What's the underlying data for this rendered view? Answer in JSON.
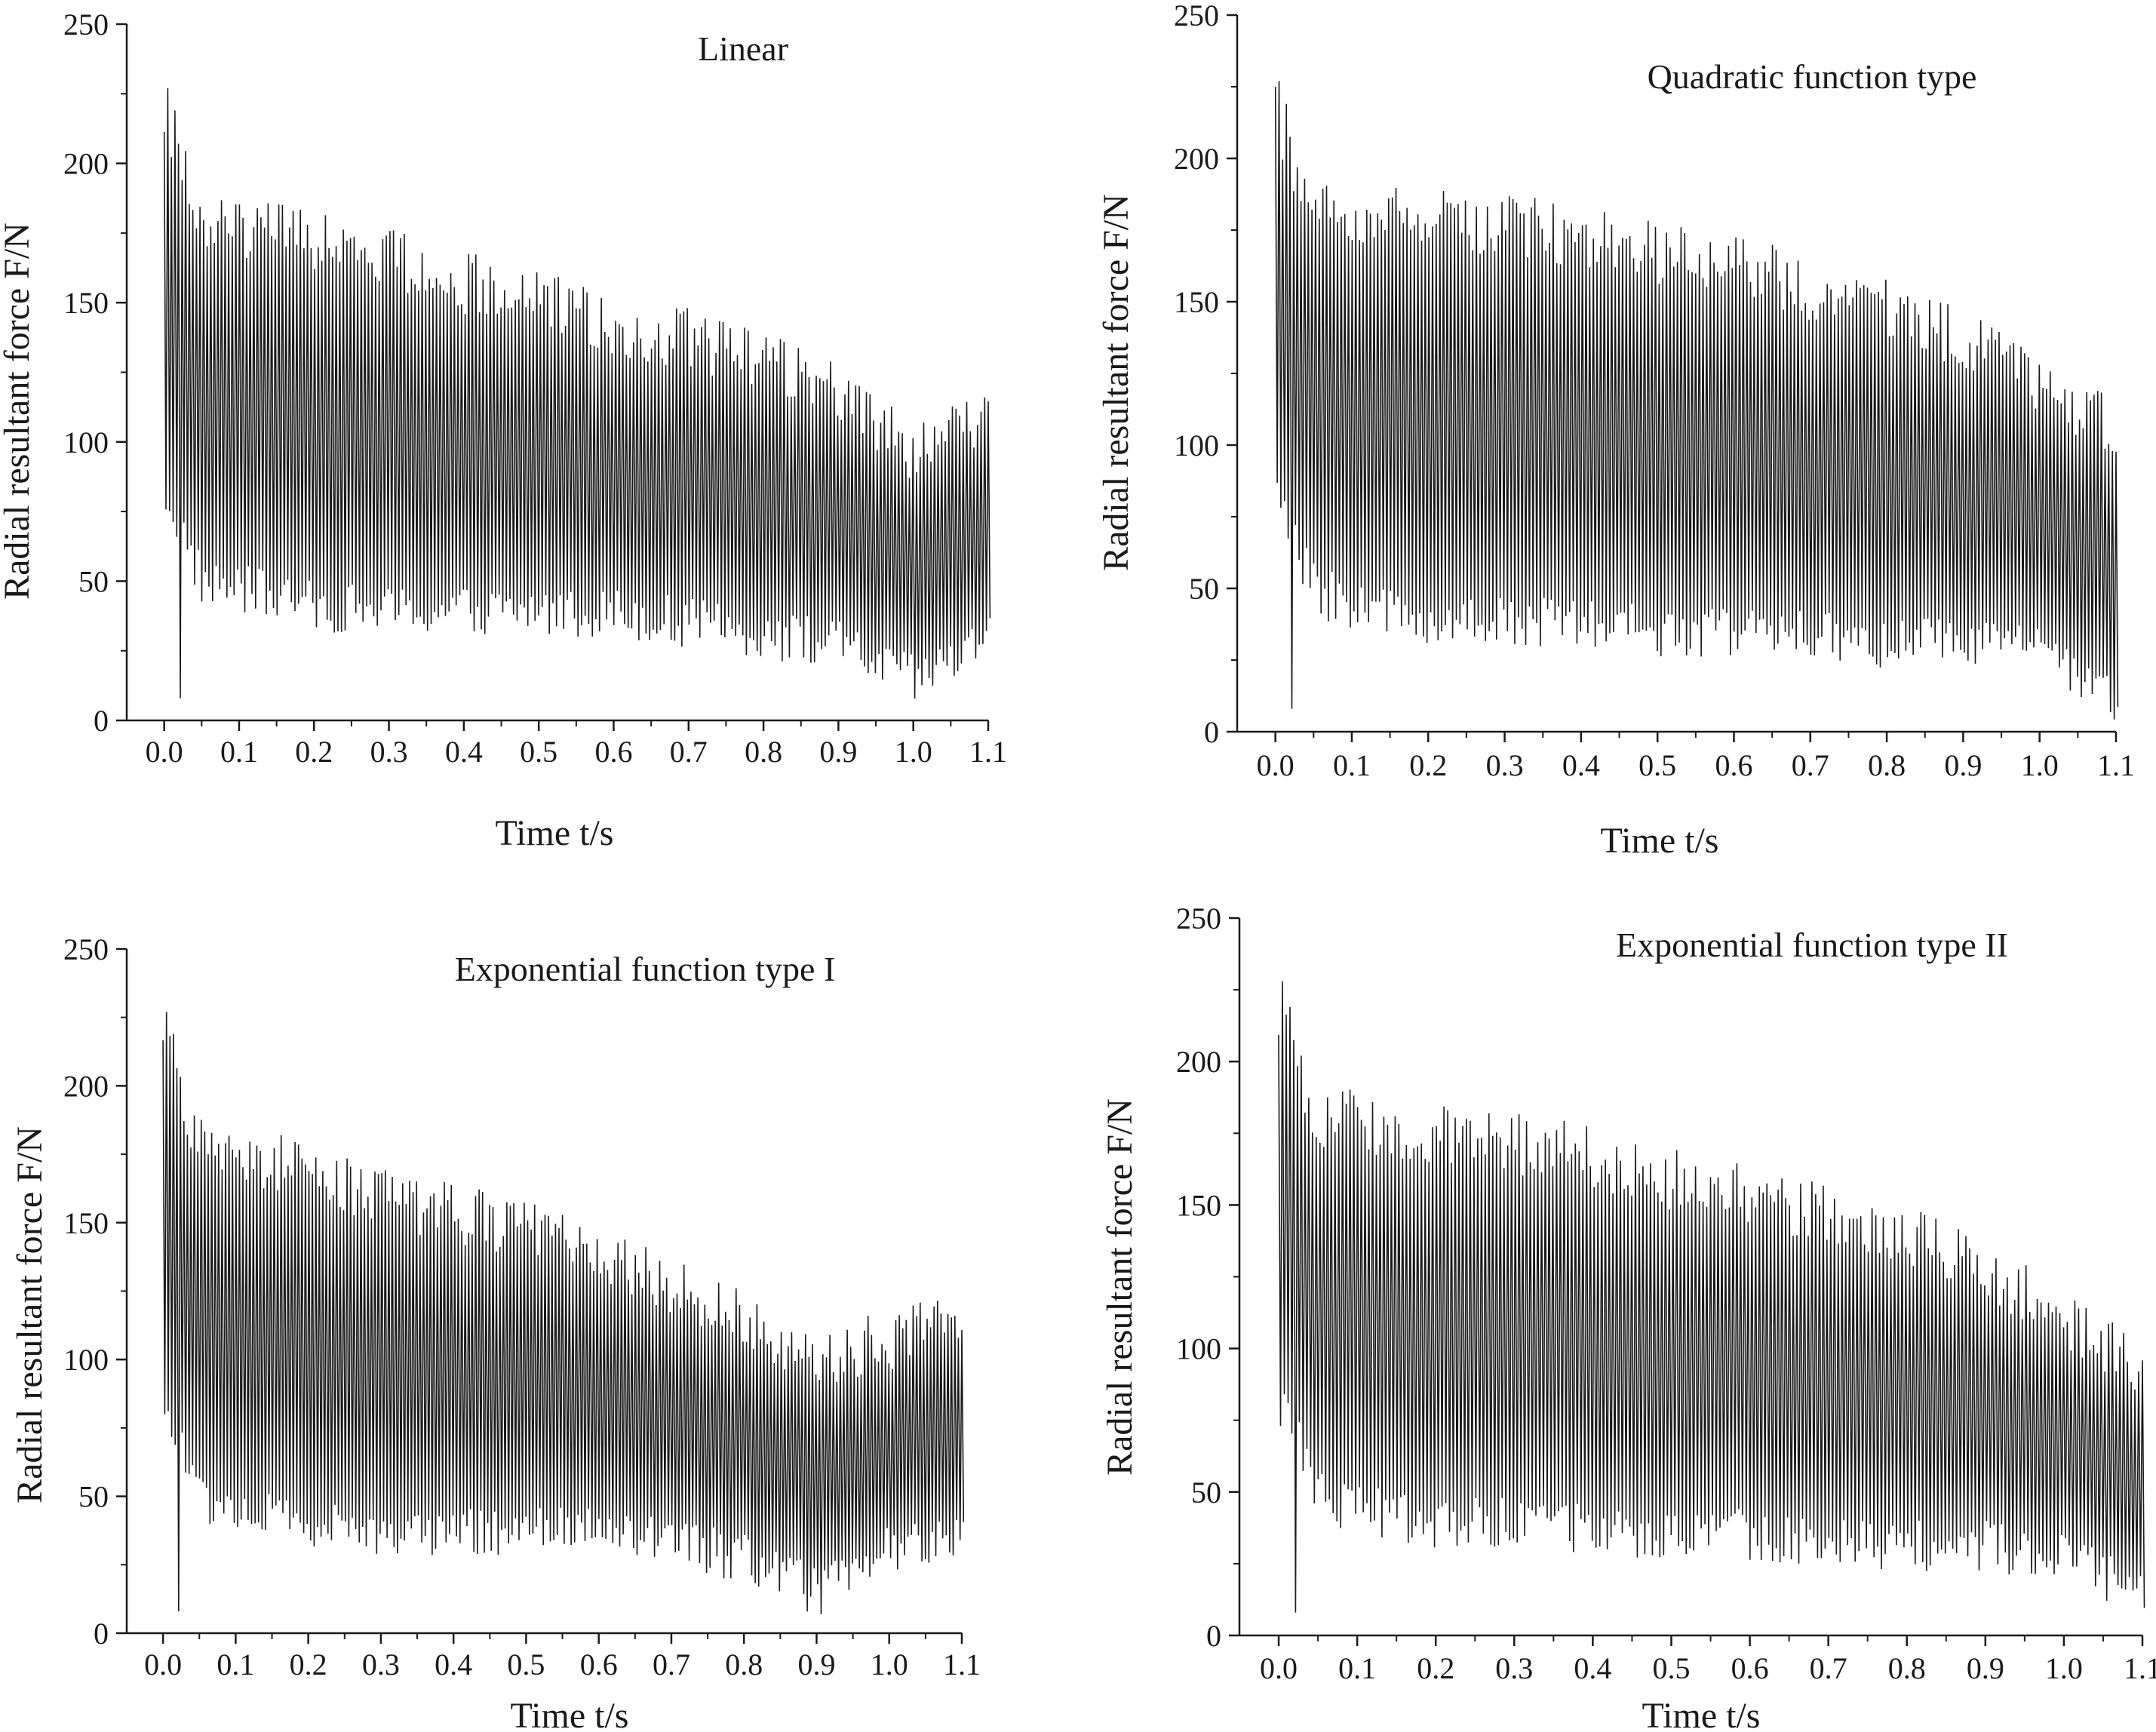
{
  "colors": {
    "line": "#1a1a1a",
    "background": "#ffffff"
  },
  "chart_data": [
    {
      "type": "line",
      "title": "Linear",
      "xlabel": "Time  t/s",
      "ylabel": "Radial resultant force F/N",
      "xlim": [
        -0.05,
        1.1
      ],
      "ylim": [
        0,
        250
      ],
      "xticks": [
        "0.0",
        "0.1",
        "0.2",
        "0.3",
        "0.4",
        "0.5",
        "0.6",
        "0.7",
        "0.8",
        "0.9",
        "1.0",
        "1.1"
      ],
      "yticks": [
        "0",
        "50",
        "100",
        "150",
        "200",
        "250"
      ],
      "series": [
        {
          "name": "Linear",
          "description_values": {
            "x": [
              0.0,
              0.05,
              0.1,
              0.2,
              0.3,
              0.4,
              0.5,
              0.6,
              0.7,
              0.8,
              0.9,
              1.0,
              1.1
            ],
            "upper_envelope": [
              227,
              190,
              188,
              184,
              178,
              168,
              164,
              152,
              148,
              140,
              130,
              108,
              118
            ],
            "lower_envelope": [
              72,
              40,
              38,
              32,
              30,
              30,
              30,
              30,
              26,
              22,
              18,
              5,
              20
            ]
          }
        }
      ]
    },
    {
      "type": "line",
      "title": "Quadratic function type",
      "xlabel": "Time  t/s",
      "ylabel": "Radial resultant force  F/N",
      "xlim": [
        -0.05,
        1.1
      ],
      "ylim": [
        0,
        250
      ],
      "xticks": [
        "0.0",
        "0.1",
        "0.2",
        "0.3",
        "0.4",
        "0.5",
        "0.6",
        "0.7",
        "0.8",
        "0.9",
        "1.0",
        "1.1"
      ],
      "yticks": [
        "0",
        "50",
        "100",
        "150",
        "200",
        "250"
      ],
      "series": [
        {
          "name": "Quadratic function type",
          "description_values": {
            "x": [
              0.0,
              0.05,
              0.1,
              0.2,
              0.3,
              0.4,
              0.5,
              0.6,
              0.7,
              0.8,
              0.9,
              1.0,
              1.1
            ],
            "upper_envelope": [
              227,
              192,
              190,
              190,
              188,
              184,
              178,
              175,
              165,
              160,
              148,
              130,
              118
            ],
            "lower_envelope": [
              72,
              40,
              35,
              30,
              30,
              28,
              26,
              26,
              24,
              22,
              22,
              18,
              2
            ]
          }
        }
      ]
    },
    {
      "type": "line",
      "title": "Exponential function type I",
      "xlabel": "Time t/s",
      "ylabel": "Radial resultant force F/N",
      "xlim": [
        -0.05,
        1.1
      ],
      "ylim": [
        0,
        250
      ],
      "xticks": [
        "0.0",
        "0.1",
        "0.2",
        "0.3",
        "0.4",
        "0.5",
        "0.6",
        "0.7",
        "0.8",
        "0.9",
        "1.0",
        "1.1"
      ],
      "yticks": [
        "0",
        "50",
        "100",
        "150",
        "200",
        "250"
      ],
      "series": [
        {
          "name": "Exponential function type I",
          "description_values": {
            "x": [
              0.0,
              0.05,
              0.1,
              0.2,
              0.3,
              0.4,
              0.5,
              0.6,
              0.7,
              0.8,
              0.9,
              1.0,
              1.1
            ],
            "upper_envelope": [
              227,
              190,
              186,
              182,
              170,
              165,
              158,
              150,
              138,
              126,
              112,
              118,
              126
            ],
            "lower_envelope": [
              72,
              40,
              36,
              30,
              28,
              28,
              28,
              28,
              24,
              18,
              6,
              22,
              26
            ]
          }
        }
      ]
    },
    {
      "type": "line",
      "title": "Exponential function type II",
      "xlabel": "Time t/s",
      "ylabel": "Radial resultant force F/N",
      "xlim": [
        -0.05,
        1.1
      ],
      "ylim": [
        0,
        250
      ],
      "xticks": [
        "0.0",
        "0.1",
        "0.2",
        "0.3",
        "0.4",
        "0.5",
        "0.6",
        "0.7",
        "0.8",
        "0.9",
        "1.0",
        "1.1"
      ],
      "yticks": [
        "0",
        "50",
        "100",
        "150",
        "200",
        "250"
      ],
      "series": [
        {
          "name": "Exponential function type II",
          "description_values": {
            "x": [
              0.0,
              0.05,
              0.1,
              0.2,
              0.3,
              0.4,
              0.5,
              0.6,
              0.7,
              0.8,
              0.9,
              1.0,
              1.1
            ],
            "upper_envelope": [
              228,
              192,
              190,
              186,
              182,
              178,
              170,
              165,
              158,
              150,
              138,
              122,
              106
            ],
            "lower_envelope": [
              72,
              40,
              35,
              30,
              30,
              28,
              26,
              26,
              24,
              22,
              22,
              18,
              5
            ]
          }
        }
      ]
    }
  ]
}
